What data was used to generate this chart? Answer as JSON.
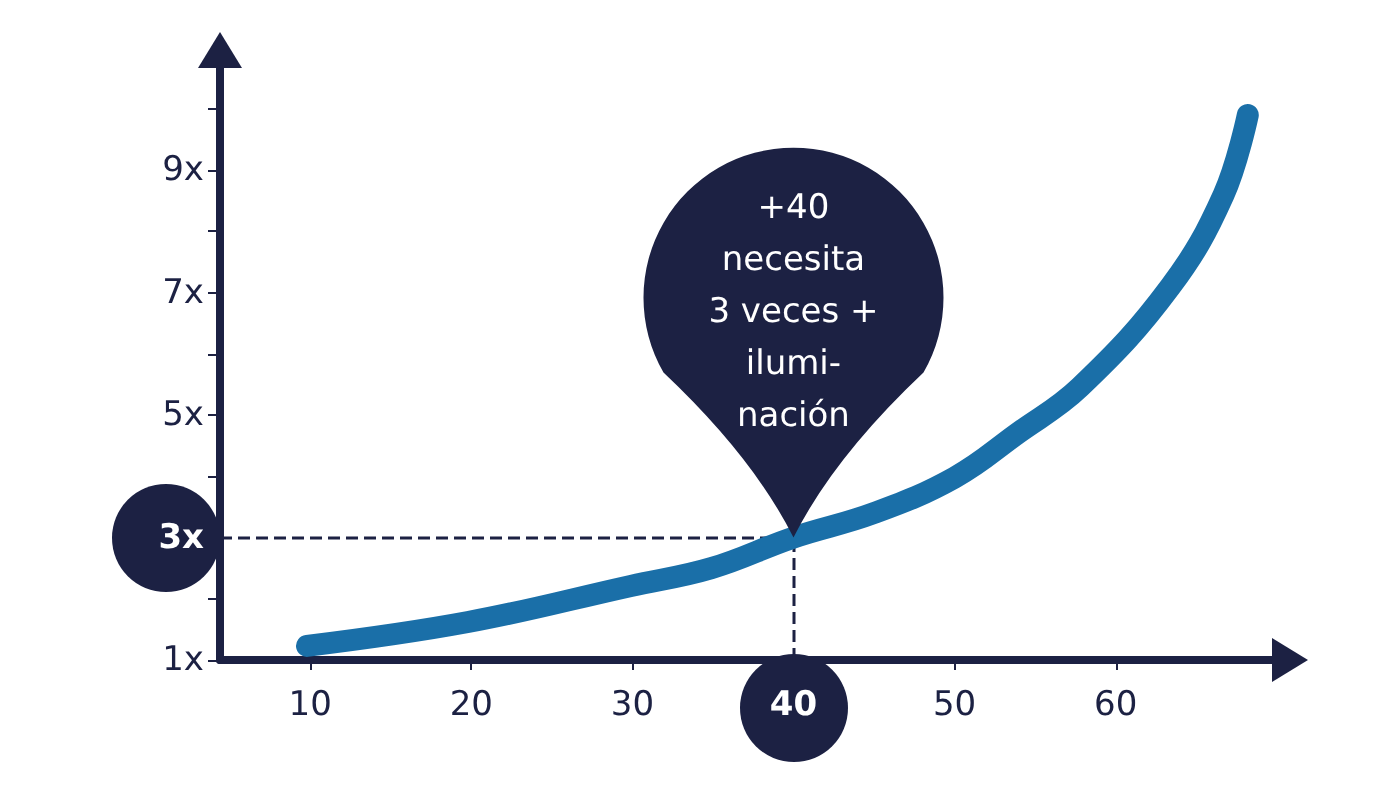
{
  "chart_data": {
    "type": "line",
    "x": [
      9.8,
      19.8,
      29.9,
      34.9,
      40,
      45,
      50,
      53.9,
      57.8,
      63.4,
      66.7,
      68.2
    ],
    "series": [
      {
        "color": "#1a6fa8",
        "values": [
          1.23,
          1.62,
          2.21,
          2.5,
          3,
          3.4,
          3.98,
          4.7,
          5.46,
          7.1,
          8.6,
          9.9
        ]
      }
    ],
    "xlim": [
      4.4,
      70.2
    ],
    "xticks": [
      10,
      20,
      30,
      40,
      50,
      60
    ],
    "ylim": [
      1,
      10.8
    ],
    "yticks": [
      {
        "value": 1,
        "label": "1x"
      },
      {
        "value": 2,
        "label": null
      },
      {
        "value": 3,
        "label": "3x"
      },
      {
        "value": 4,
        "label": null
      },
      {
        "value": 5,
        "label": "5x"
      },
      {
        "value": 6,
        "label": null
      },
      {
        "value": 7,
        "label": "7x"
      },
      {
        "value": 8,
        "label": null
      },
      {
        "value": 9,
        "label": "9x"
      },
      {
        "value": 10,
        "label": null
      }
    ],
    "ref_lines": [
      {
        "axis": "x",
        "value": 40,
        "line_style": "dashed",
        "color": "#1c2143"
      },
      {
        "axis": "y",
        "value": 3,
        "line_style": "dashed",
        "color": "#1c2143"
      }
    ],
    "annotations": [
      "+40\nnecesita\n3 veces +\nilumi-\nnación"
    ],
    "grid": false,
    "line_style": "solid"
  }
}
